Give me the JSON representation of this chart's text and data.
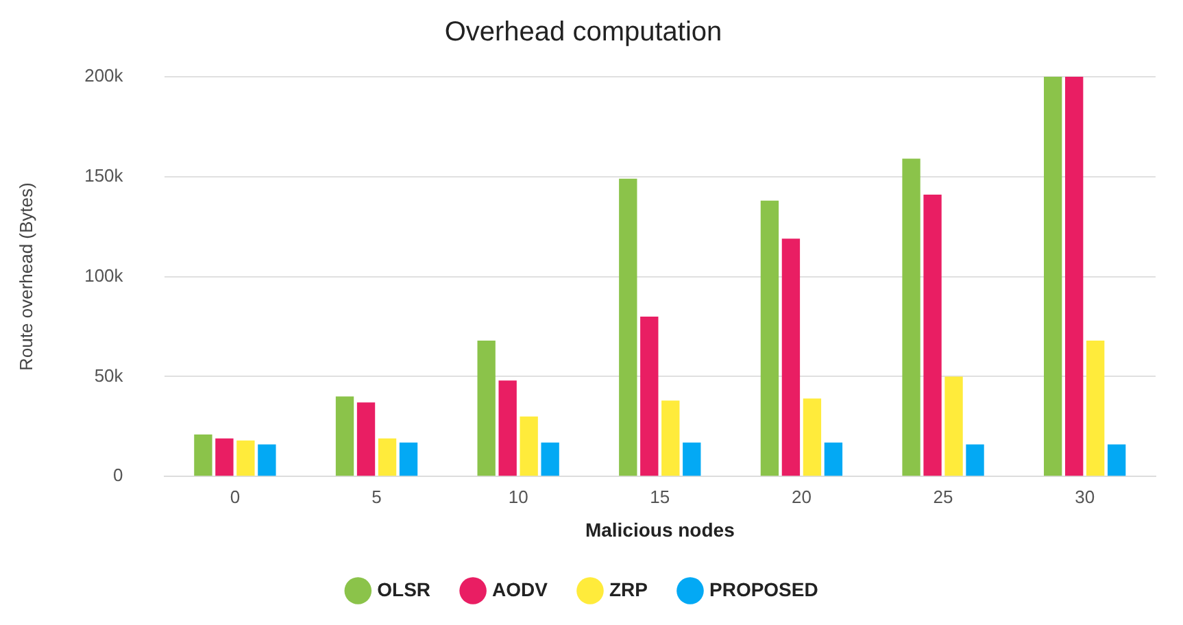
{
  "chart_data": {
    "type": "bar",
    "title": "Overhead computation",
    "xlabel": "Malicious nodes",
    "ylabel": "Route overhead (Bytes)",
    "categories": [
      "0",
      "5",
      "10",
      "15",
      "20",
      "25",
      "30"
    ],
    "series": [
      {
        "name": "OLSR",
        "color": "#8bc34a",
        "values": [
          21000,
          40000,
          68000,
          149000,
          138000,
          159000,
          200000
        ]
      },
      {
        "name": "AODV",
        "color": "#e91e63",
        "values": [
          19000,
          37000,
          48000,
          80000,
          119000,
          141000,
          200000
        ]
      },
      {
        "name": "ZRP",
        "color": "#ffeb3b",
        "values": [
          18000,
          19000,
          30000,
          38000,
          39000,
          50000,
          68000
        ]
      },
      {
        "name": "PROPOSED",
        "color": "#03a9f4",
        "values": [
          16000,
          17000,
          17000,
          17000,
          17000,
          16000,
          16000
        ]
      }
    ],
    "ylim": [
      0,
      200000
    ],
    "yticks": [
      {
        "value": 0,
        "label": "0"
      },
      {
        "value": 50000,
        "label": "50k"
      },
      {
        "value": 100000,
        "label": "100k"
      },
      {
        "value": 150000,
        "label": "150k"
      },
      {
        "value": 200000,
        "label": "200k"
      }
    ],
    "grid": "y",
    "legend": "bottom",
    "marker": "circle"
  }
}
